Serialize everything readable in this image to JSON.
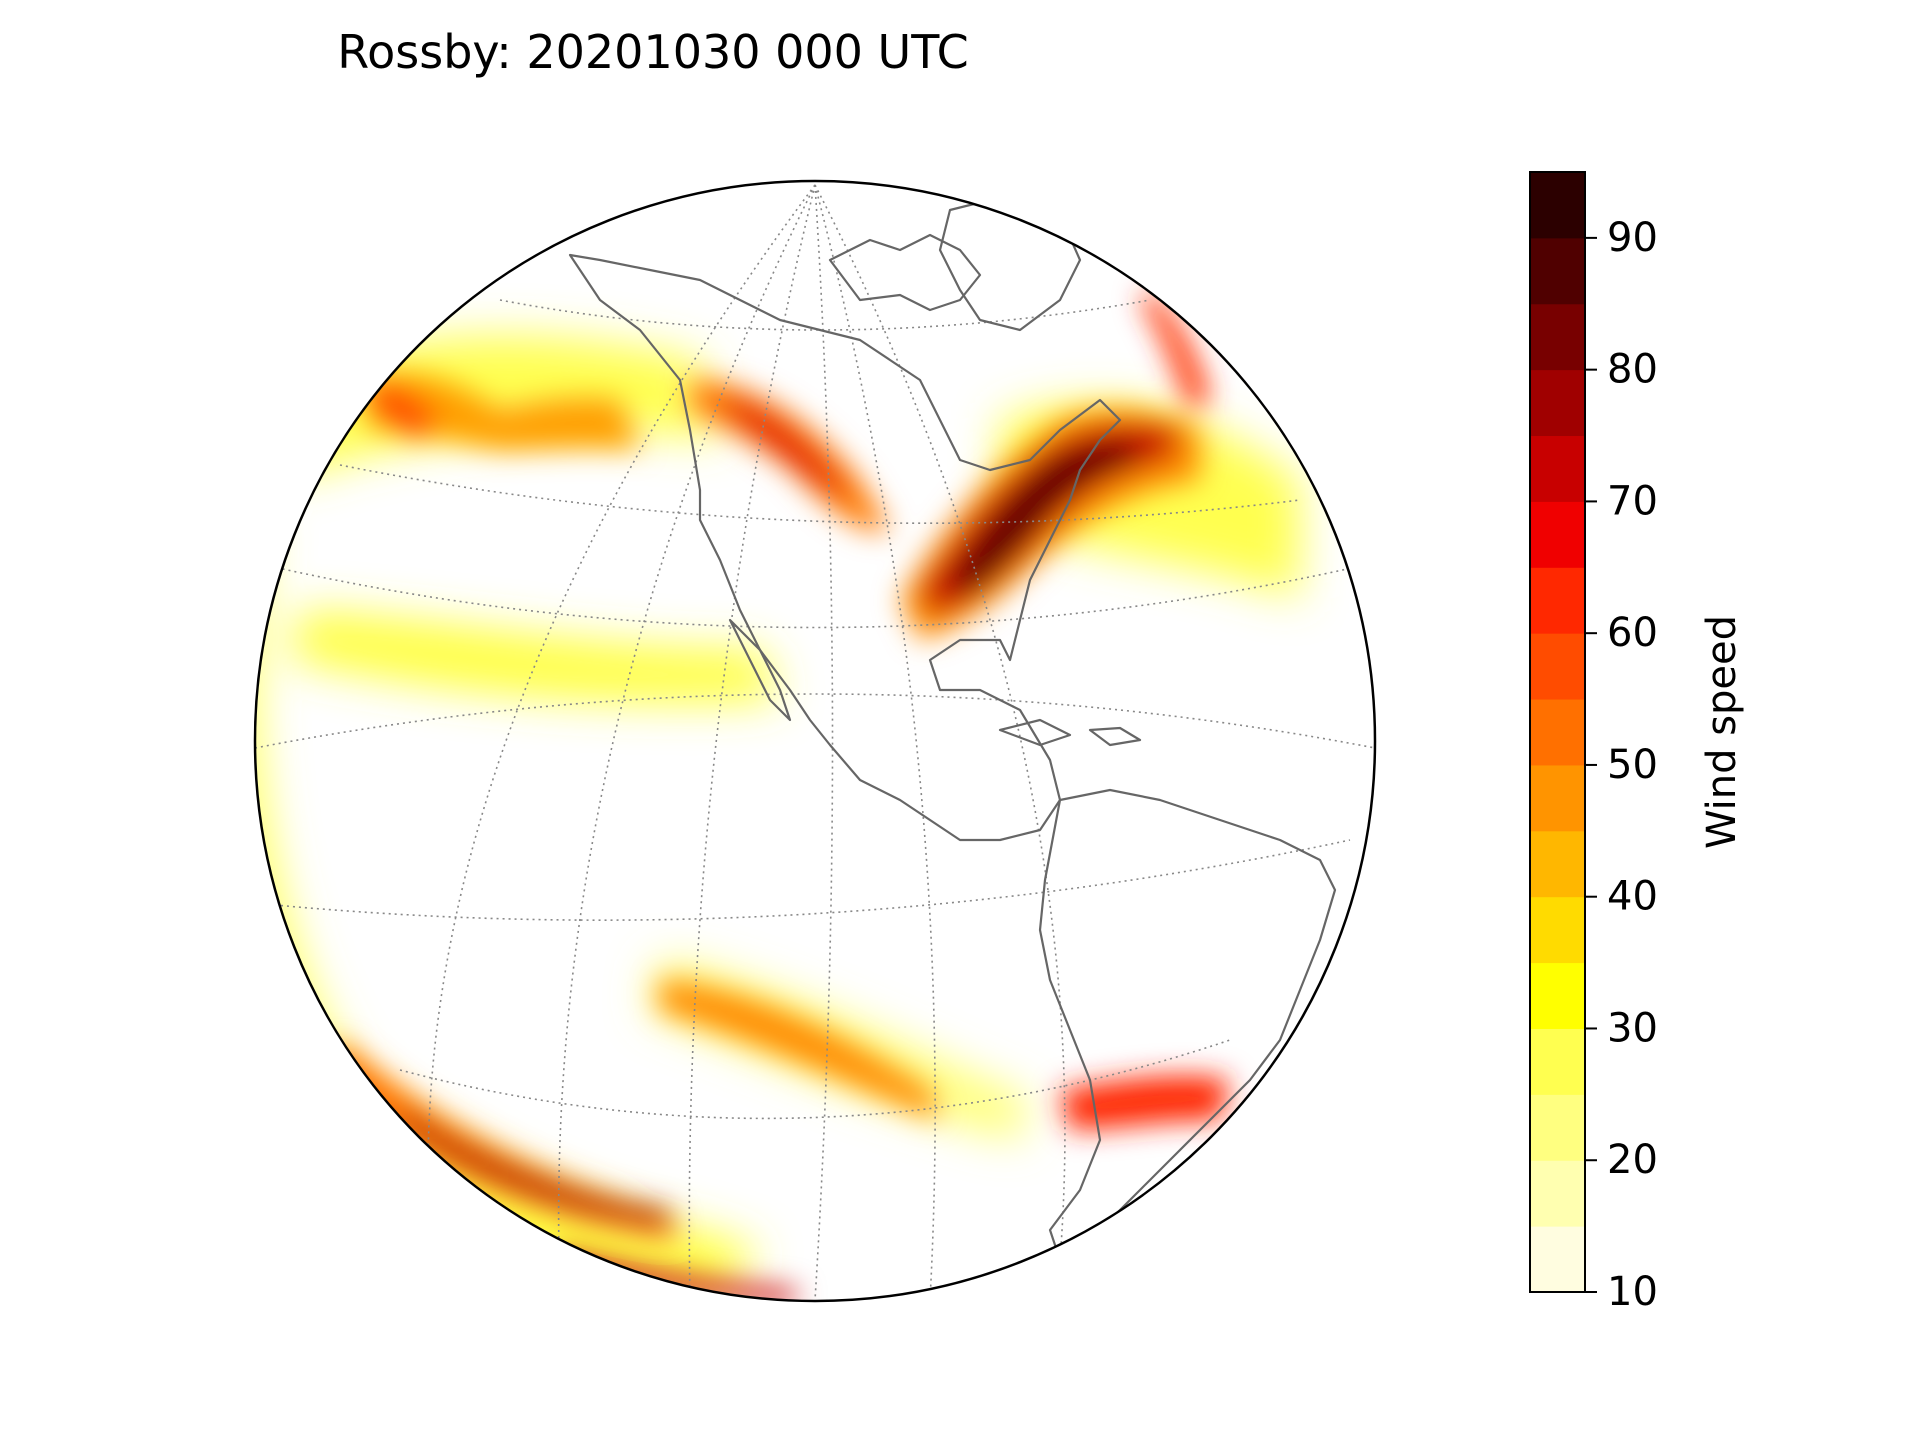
{
  "title": "Rossby: 20201030 000 UTC",
  "map": {
    "projection": "orthographic",
    "center_lon": -75,
    "center_lat": 20,
    "field": "wind speed",
    "coastline_color": "#666666",
    "graticule_color": "#888888",
    "jet_features": [
      {
        "region": "northeastern North America / Great Lakes",
        "max_speed": 85
      },
      {
        "region": "North Pacific off Alaska",
        "max_speed": 60
      },
      {
        "region": "western Canada",
        "max_speed": 60
      },
      {
        "region": "Greenland / North Atlantic",
        "max_speed": 60
      },
      {
        "region": "South Pacific subtropical jet",
        "max_speed": 50
      },
      {
        "region": "South Pacific polar jet",
        "max_speed": 70
      },
      {
        "region": "southern South America",
        "max_speed": 65
      }
    ]
  },
  "colorbar": {
    "label": "Wind speed",
    "min": 10,
    "max": 95,
    "levels": [
      10,
      15,
      20,
      25,
      30,
      35,
      40,
      45,
      50,
      55,
      60,
      65,
      70,
      75,
      80,
      85,
      90,
      95
    ],
    "colors": [
      "#fffde0",
      "#ffffb0",
      "#ffff80",
      "#ffff50",
      "#ffff00",
      "#ffdb00",
      "#ffb700",
      "#ff9400",
      "#ff7000",
      "#ff4c00",
      "#ff2800",
      "#f00000",
      "#c80000",
      "#a00000",
      "#780000",
      "#500000",
      "#2c0000"
    ],
    "ticks": [
      "10",
      "20",
      "30",
      "40",
      "50",
      "60",
      "70",
      "80",
      "90"
    ]
  }
}
